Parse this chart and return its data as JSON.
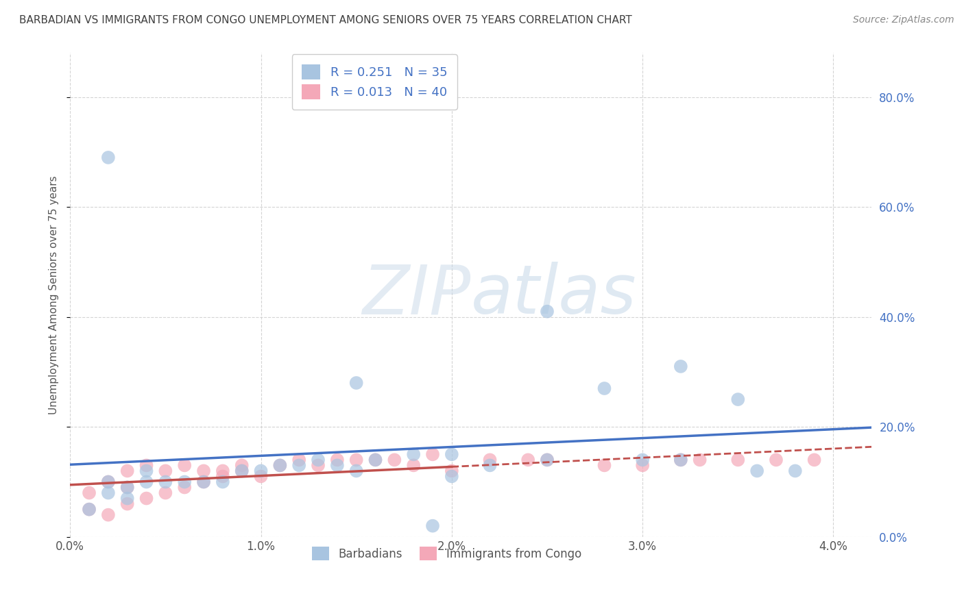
{
  "title": "BARBADIAN VS IMMIGRANTS FROM CONGO UNEMPLOYMENT AMONG SENIORS OVER 75 YEARS CORRELATION CHART",
  "source": "Source: ZipAtlas.com",
  "ylabel_label": "Unemployment Among Seniors over 75 years",
  "legend_bottom": [
    "Barbadians",
    "Immigrants from Congo"
  ],
  "watermark": "ZIPatlas",
  "barbadian_R": 0.251,
  "barbadian_N": 35,
  "congo_R": 0.013,
  "congo_N": 40,
  "barbadian_color": "#a8c4e0",
  "congo_color": "#f4a8b8",
  "barbadian_line_color": "#4472c4",
  "congo_line_color": "#c0504d",
  "title_color": "#404040",
  "stat_color": "#4472c4",
  "right_axis_color": "#4472c4",
  "background_color": "#ffffff",
  "grid_color": "#d0d0d0",
  "barbadian_x": [
    0.001,
    0.002,
    0.002,
    0.003,
    0.003,
    0.004,
    0.004,
    0.005,
    0.006,
    0.007,
    0.008,
    0.009,
    0.01,
    0.011,
    0.012,
    0.013,
    0.014,
    0.015,
    0.016,
    0.018,
    0.002,
    0.015,
    0.02,
    0.025,
    0.028,
    0.03,
    0.032,
    0.025,
    0.032,
    0.035,
    0.036,
    0.038,
    0.019,
    0.02,
    0.022
  ],
  "barbadian_y": [
    0.05,
    0.08,
    0.1,
    0.07,
    0.09,
    0.1,
    0.12,
    0.1,
    0.1,
    0.1,
    0.1,
    0.12,
    0.12,
    0.13,
    0.13,
    0.14,
    0.13,
    0.12,
    0.14,
    0.15,
    0.69,
    0.28,
    0.15,
    0.14,
    0.27,
    0.14,
    0.14,
    0.41,
    0.31,
    0.25,
    0.12,
    0.12,
    0.02,
    0.11,
    0.13
  ],
  "congo_x": [
    0.001,
    0.001,
    0.002,
    0.002,
    0.003,
    0.003,
    0.003,
    0.004,
    0.004,
    0.005,
    0.005,
    0.006,
    0.006,
    0.007,
    0.007,
    0.008,
    0.008,
    0.009,
    0.009,
    0.01,
    0.011,
    0.012,
    0.013,
    0.014,
    0.015,
    0.016,
    0.017,
    0.018,
    0.019,
    0.02,
    0.022,
    0.024,
    0.025,
    0.028,
    0.03,
    0.032,
    0.033,
    0.035,
    0.037,
    0.039
  ],
  "congo_y": [
    0.05,
    0.08,
    0.04,
    0.1,
    0.06,
    0.09,
    0.12,
    0.07,
    0.13,
    0.08,
    0.12,
    0.09,
    0.13,
    0.1,
    0.12,
    0.11,
    0.12,
    0.12,
    0.13,
    0.11,
    0.13,
    0.14,
    0.13,
    0.14,
    0.14,
    0.14,
    0.14,
    0.13,
    0.15,
    0.12,
    0.14,
    0.14,
    0.14,
    0.13,
    0.13,
    0.14,
    0.14,
    0.14,
    0.14,
    0.14
  ],
  "xlim": [
    0.0,
    0.042
  ],
  "ylim": [
    0.0,
    0.88
  ],
  "xticks": [
    0.0,
    0.01,
    0.02,
    0.03,
    0.04
  ],
  "yticks": [
    0.0,
    0.2,
    0.4,
    0.6,
    0.8
  ]
}
